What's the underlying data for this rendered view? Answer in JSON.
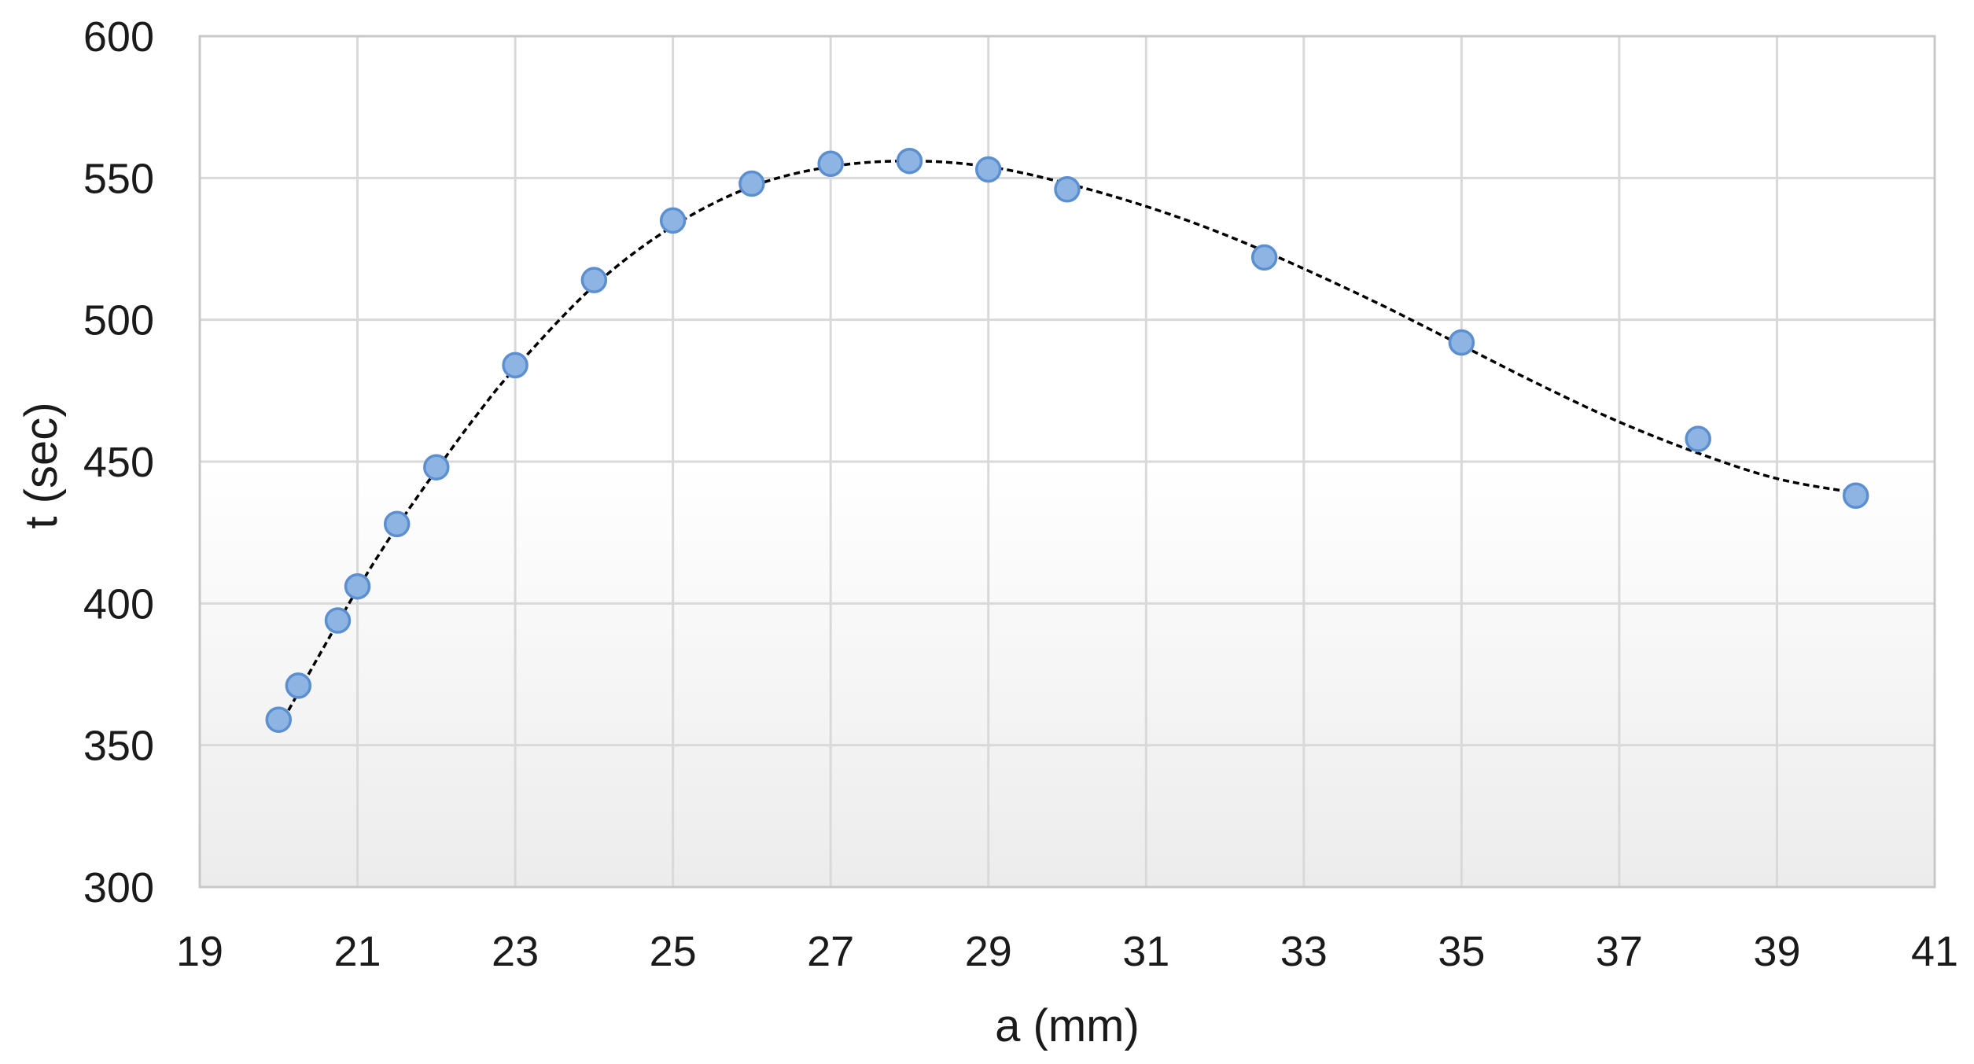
{
  "chart_data": {
    "type": "scatter",
    "title": "",
    "xlabel": "a (mm)",
    "ylabel": "t (sec)",
    "xlim": [
      19,
      41
    ],
    "ylim": [
      300,
      600
    ],
    "xticks": [
      19,
      21,
      23,
      25,
      27,
      29,
      31,
      33,
      35,
      37,
      39,
      41
    ],
    "yticks": [
      300,
      350,
      400,
      450,
      500,
      550,
      600
    ],
    "x_tick_labels": [
      "19",
      "21",
      "23",
      "25",
      "27",
      "29",
      "31",
      "33",
      "35",
      "37",
      "39",
      "41"
    ],
    "y_tick_labels": [
      "300",
      "350",
      "400",
      "450",
      "500",
      "550",
      "600"
    ],
    "grid": true,
    "legend": "none",
    "series": [
      {
        "marker_color": "#8db4e2",
        "marker_edge_color": "#5b8fd0",
        "points": [
          {
            "x": 20.0,
            "y": 359
          },
          {
            "x": 20.25,
            "y": 371
          },
          {
            "x": 20.75,
            "y": 394
          },
          {
            "x": 21.0,
            "y": 406
          },
          {
            "x": 21.5,
            "y": 428
          },
          {
            "x": 22.0,
            "y": 448
          },
          {
            "x": 23.0,
            "y": 484
          },
          {
            "x": 24.0,
            "y": 514
          },
          {
            "x": 25.0,
            "y": 535
          },
          {
            "x": 26.0,
            "y": 548
          },
          {
            "x": 27.0,
            "y": 555
          },
          {
            "x": 28.0,
            "y": 556
          },
          {
            "x": 29.0,
            "y": 553
          },
          {
            "x": 30.0,
            "y": 546
          },
          {
            "x": 32.5,
            "y": 522
          },
          {
            "x": 35.0,
            "y": 492
          },
          {
            "x": 38.0,
            "y": 458
          },
          {
            "x": 40.0,
            "y": 438
          }
        ]
      }
    ],
    "trendline": {
      "style": "dashed",
      "color": "#000000",
      "points": [
        {
          "x": 20.0,
          "y": 356
        },
        {
          "x": 20.5,
          "y": 381
        },
        {
          "x": 21.0,
          "y": 405
        },
        {
          "x": 21.5,
          "y": 427
        },
        {
          "x": 22.0,
          "y": 447
        },
        {
          "x": 22.5,
          "y": 466
        },
        {
          "x": 23.0,
          "y": 483
        },
        {
          "x": 24.0,
          "y": 512
        },
        {
          "x": 25.0,
          "y": 533
        },
        {
          "x": 26.0,
          "y": 547
        },
        {
          "x": 27.0,
          "y": 554
        },
        {
          "x": 28.0,
          "y": 556
        },
        {
          "x": 29.0,
          "y": 554
        },
        {
          "x": 30.0,
          "y": 548
        },
        {
          "x": 31.0,
          "y": 540
        },
        {
          "x": 32.0,
          "y": 530
        },
        {
          "x": 33.0,
          "y": 518
        },
        {
          "x": 34.0,
          "y": 505
        },
        {
          "x": 35.0,
          "y": 491
        },
        {
          "x": 36.0,
          "y": 477
        },
        {
          "x": 37.0,
          "y": 464
        },
        {
          "x": 38.0,
          "y": 453
        },
        {
          "x": 39.0,
          "y": 444
        },
        {
          "x": 40.0,
          "y": 439
        }
      ]
    }
  }
}
